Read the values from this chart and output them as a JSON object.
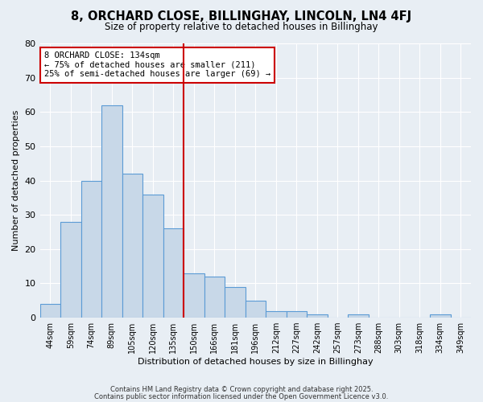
{
  "title": "8, ORCHARD CLOSE, BILLINGHAY, LINCOLN, LN4 4FJ",
  "subtitle": "Size of property relative to detached houses in Billinghay",
  "xlabel": "Distribution of detached houses by size in Billinghay",
  "ylabel": "Number of detached properties",
  "footer1": "Contains HM Land Registry data © Crown copyright and database right 2025.",
  "footer2": "Contains public sector information licensed under the Open Government Licence v3.0.",
  "bin_labels": [
    "44sqm",
    "59sqm",
    "74sqm",
    "89sqm",
    "105sqm",
    "120sqm",
    "135sqm",
    "150sqm",
    "166sqm",
    "181sqm",
    "196sqm",
    "212sqm",
    "227sqm",
    "242sqm",
    "257sqm",
    "273sqm",
    "288sqm",
    "303sqm",
    "318sqm",
    "334sqm",
    "349sqm"
  ],
  "bar_values": [
    4,
    28,
    40,
    62,
    42,
    36,
    26,
    13,
    12,
    9,
    5,
    2,
    2,
    1,
    0,
    1,
    0,
    0,
    0,
    1,
    0
  ],
  "bar_color": "#c8d8e8",
  "bar_edge_color": "#5b9bd5",
  "vline_color": "#cc0000",
  "vline_pos": 6.5,
  "ylim": [
    0,
    80
  ],
  "yticks": [
    0,
    10,
    20,
    30,
    40,
    50,
    60,
    70,
    80
  ],
  "annotation_title": "8 ORCHARD CLOSE: 134sqm",
  "annotation_line1": "← 75% of detached houses are smaller (211)",
  "annotation_line2": "25% of semi-detached houses are larger (69) →",
  "annotation_box_color": "#cc0000",
  "bg_color": "#e8eef4",
  "grid_color": "#ffffff"
}
